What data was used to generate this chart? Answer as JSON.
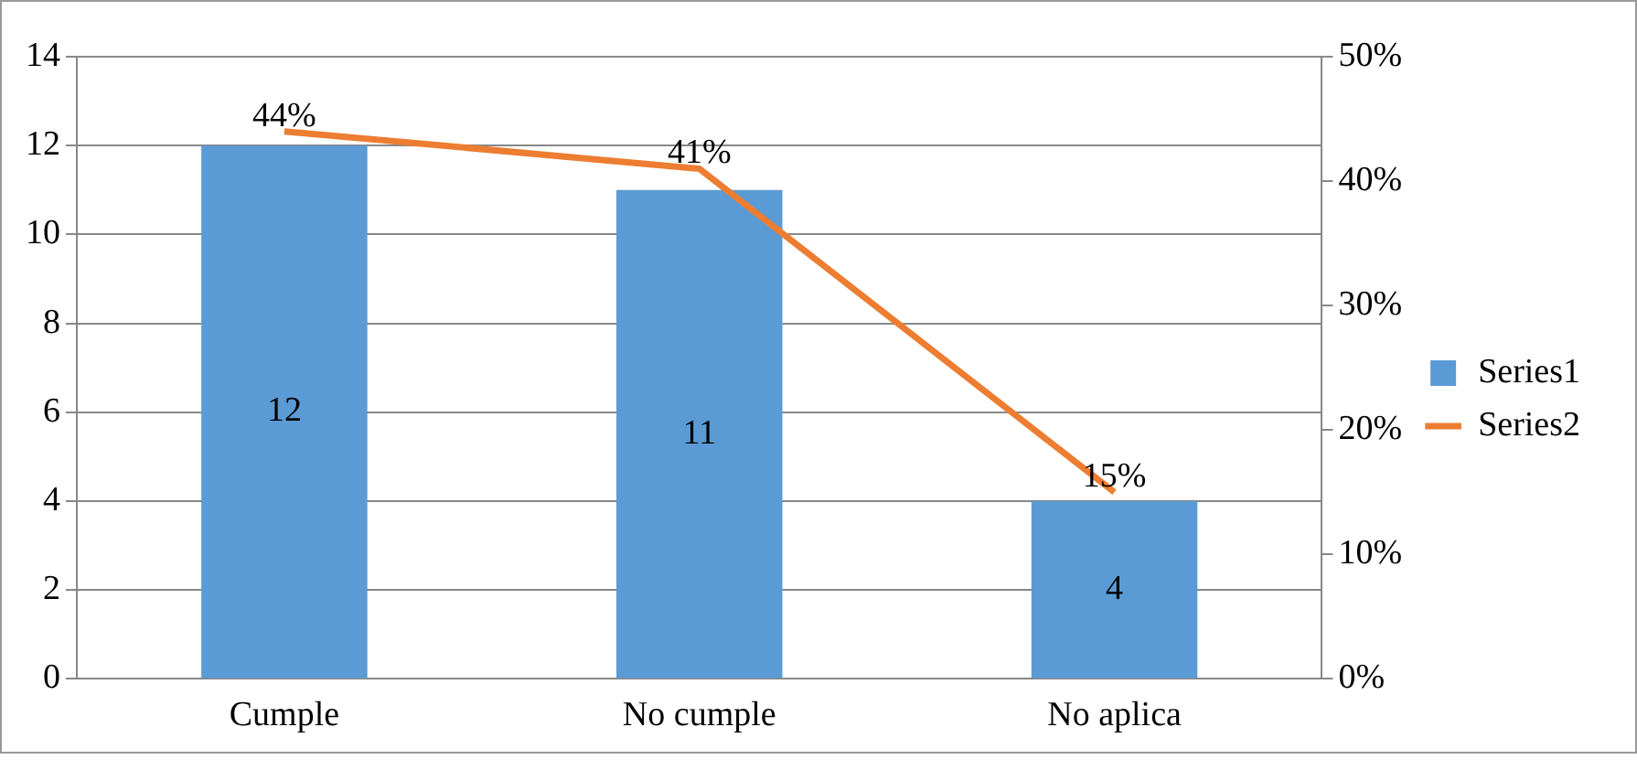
{
  "chart_data": {
    "type": "bar",
    "categories": [
      "Cumple",
      "No cumple",
      "No aplica"
    ],
    "series": [
      {
        "name": "Series1",
        "color": "#5b9bd5",
        "values": [
          12,
          11,
          4
        ],
        "value_labels": [
          "12",
          "11",
          "4"
        ]
      },
      {
        "name": "Series2",
        "type": "line",
        "axis": "y2",
        "color": "#ed7d31",
        "values": [
          44,
          41,
          15
        ],
        "value_labels": [
          "44%",
          "41%",
          "15%"
        ]
      }
    ],
    "ylim": [
      0,
      14
    ],
    "yticks": [
      0,
      2,
      4,
      6,
      8,
      10,
      12,
      14
    ],
    "y2lim": [
      0,
      50
    ],
    "y2ticks": [
      {
        "value": 0,
        "label": "0%"
      },
      {
        "value": 10,
        "label": "10%"
      },
      {
        "value": 20,
        "label": "20%"
      },
      {
        "value": 30,
        "label": "30%"
      },
      {
        "value": 40,
        "label": "40%"
      },
      {
        "value": 50,
        "label": "50%"
      }
    ],
    "grid": "y",
    "legend": "right",
    "marker": "none",
    "line_style": "solid"
  }
}
